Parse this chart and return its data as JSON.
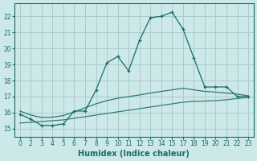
{
  "xlabel": "Humidex (Indice chaleur)",
  "background_color": "#cce8e8",
  "grid_color": "#aacccc",
  "line_color": "#1a6b6b",
  "xtick_labels": [
    "0",
    "2",
    "3",
    "4",
    "5",
    "6",
    "7",
    "8",
    "9",
    "10",
    "11",
    "12",
    "13",
    "14",
    "15",
    "17",
    "18",
    "19",
    "20",
    "21",
    "22",
    "23"
  ],
  "ylim": [
    14.5,
    22.8
  ],
  "xlim": [
    -0.5,
    21.5
  ],
  "yticks": [
    15,
    16,
    17,
    18,
    19,
    20,
    21,
    22
  ],
  "series1_y": [
    15.9,
    15.6,
    15.2,
    15.2,
    15.3,
    16.1,
    16.1,
    17.4,
    19.1,
    19.5,
    18.6,
    20.5,
    21.9,
    22.0,
    22.25,
    21.2,
    19.4,
    17.6,
    17.6,
    17.6,
    17.0,
    17.0
  ],
  "series2_y": [
    16.1,
    15.85,
    15.7,
    15.72,
    15.82,
    16.05,
    16.3,
    16.55,
    16.75,
    16.9,
    17.0,
    17.1,
    17.22,
    17.32,
    17.42,
    17.52,
    17.42,
    17.32,
    17.28,
    17.22,
    17.15,
    17.05
  ],
  "series3_y": [
    15.35,
    15.4,
    15.45,
    15.5,
    15.55,
    15.65,
    15.75,
    15.85,
    15.95,
    16.05,
    16.15,
    16.25,
    16.35,
    16.45,
    16.55,
    16.65,
    16.7,
    16.72,
    16.75,
    16.8,
    16.88,
    16.95
  ]
}
